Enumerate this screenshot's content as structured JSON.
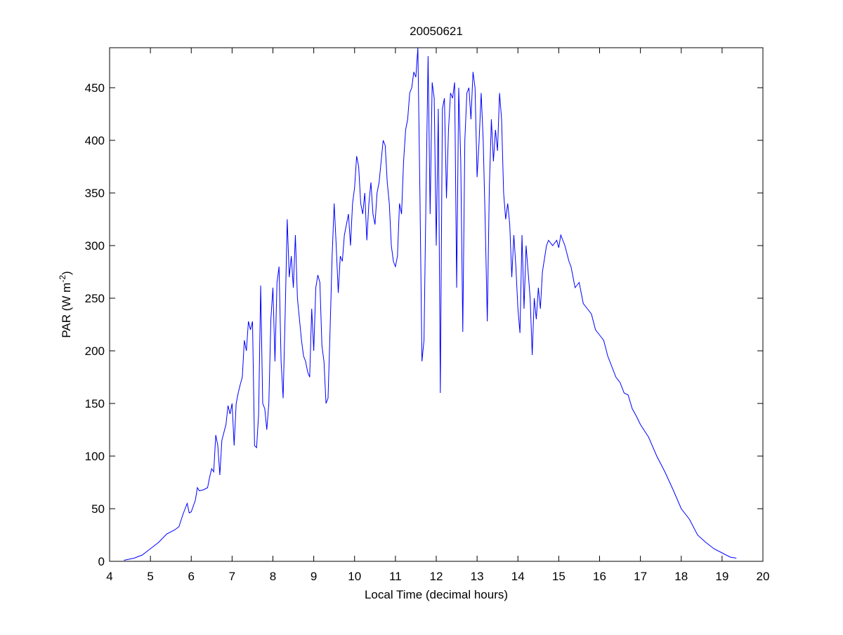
{
  "chart_data": {
    "type": "line",
    "title": "20050621",
    "xlabel": "Local Time (decimal hours)",
    "ylabel": [
      "PAR (W m",
      "-2",
      ")"
    ],
    "xlim": [
      4,
      20
    ],
    "xticks": [
      4,
      5,
      6,
      7,
      8,
      9,
      10,
      11,
      12,
      13,
      14,
      15,
      16,
      17,
      18,
      19,
      20
    ],
    "ylim": [
      0,
      488
    ],
    "yticks": [
      0,
      50,
      100,
      150,
      200,
      250,
      300,
      350,
      400,
      450
    ],
    "series": [
      {
        "color": "#0000ff",
        "x": [
          4.35,
          4.6,
          4.8,
          5.0,
          5.2,
          5.4,
          5.6,
          5.7,
          5.8,
          5.9,
          5.95,
          6.0,
          6.1,
          6.15,
          6.2,
          6.3,
          6.4,
          6.45,
          6.5,
          6.55,
          6.6,
          6.65,
          6.7,
          6.75,
          6.85,
          6.9,
          6.95,
          7.0,
          7.05,
          7.1,
          7.15,
          7.2,
          7.25,
          7.3,
          7.35,
          7.4,
          7.45,
          7.5,
          7.55,
          7.6,
          7.65,
          7.7,
          7.75,
          7.8,
          7.85,
          7.9,
          7.95,
          8.0,
          8.05,
          8.1,
          8.15,
          8.2,
          8.25,
          8.3,
          8.35,
          8.4,
          8.45,
          8.5,
          8.55,
          8.6,
          8.7,
          8.75,
          8.8,
          8.85,
          8.9,
          8.95,
          9.0,
          9.05,
          9.1,
          9.15,
          9.2,
          9.25,
          9.3,
          9.35,
          9.4,
          9.45,
          9.5,
          9.55,
          9.6,
          9.65,
          9.7,
          9.75,
          9.8,
          9.85,
          9.9,
          9.95,
          10.0,
          10.05,
          10.1,
          10.15,
          10.2,
          10.25,
          10.3,
          10.35,
          10.4,
          10.45,
          10.5,
          10.55,
          10.6,
          10.65,
          10.7,
          10.75,
          10.8,
          10.85,
          10.9,
          10.95,
          11.0,
          11.05,
          11.1,
          11.15,
          11.2,
          11.25,
          11.3,
          11.35,
          11.4,
          11.45,
          11.5,
          11.55,
          11.6,
          11.65,
          11.7,
          11.75,
          11.8,
          11.85,
          11.9,
          11.95,
          12.0,
          12.05,
          12.1,
          12.15,
          12.2,
          12.25,
          12.3,
          12.35,
          12.4,
          12.45,
          12.5,
          12.55,
          12.6,
          12.65,
          12.7,
          12.75,
          12.8,
          12.85,
          12.9,
          12.95,
          13.0,
          13.05,
          13.1,
          13.15,
          13.2,
          13.25,
          13.3,
          13.35,
          13.4,
          13.45,
          13.5,
          13.55,
          13.6,
          13.65,
          13.7,
          13.75,
          13.8,
          13.85,
          13.9,
          13.95,
          14.0,
          14.05,
          14.1,
          14.15,
          14.2,
          14.3,
          14.35,
          14.4,
          14.45,
          14.5,
          14.55,
          14.6,
          14.7,
          14.75,
          14.85,
          14.95,
          15.0,
          15.05,
          15.15,
          15.25,
          15.3,
          15.4,
          15.5,
          15.6,
          15.7,
          15.8,
          15.9,
          16.0,
          16.1,
          16.2,
          16.3,
          16.4,
          16.5,
          16.6,
          16.7,
          16.8,
          16.9,
          17.0,
          17.2,
          17.4,
          17.6,
          17.8,
          18.0,
          18.2,
          18.4,
          18.6,
          18.8,
          19.0,
          19.2,
          19.35
        ],
        "values": [
          1,
          3,
          6,
          12,
          18,
          26,
          30,
          33,
          45,
          55,
          46,
          47,
          58,
          70,
          67,
          68,
          70,
          80,
          88,
          85,
          120,
          110,
          82,
          115,
          130,
          148,
          140,
          150,
          110,
          150,
          160,
          168,
          175,
          210,
          200,
          228,
          220,
          228,
          110,
          108,
          140,
          262,
          150,
          145,
          125,
          150,
          230,
          260,
          190,
          265,
          280,
          190,
          155,
          235,
          325,
          270,
          290,
          260,
          310,
          250,
          210,
          195,
          190,
          180,
          175,
          240,
          200,
          260,
          272,
          265,
          205,
          190,
          150,
          155,
          220,
          290,
          340,
          300,
          255,
          290,
          285,
          310,
          320,
          330,
          300,
          340,
          355,
          385,
          375,
          340,
          330,
          350,
          305,
          340,
          360,
          330,
          320,
          350,
          360,
          380,
          400,
          395,
          360,
          340,
          300,
          285,
          280,
          290,
          340,
          330,
          380,
          410,
          420,
          445,
          450,
          465,
          460,
          488,
          350,
          190,
          210,
          350,
          480,
          330,
          455,
          440,
          300,
          430,
          160,
          430,
          440,
          345,
          410,
          445,
          440,
          455,
          260,
          450,
          380,
          218,
          400,
          445,
          450,
          420,
          465,
          450,
          365,
          400,
          445,
          400,
          320,
          228,
          355,
          420,
          380,
          410,
          390,
          445,
          420,
          350,
          325,
          340,
          320,
          270,
          310,
          280,
          240,
          217,
          310,
          240,
          300,
          250,
          196,
          250,
          230,
          260,
          240,
          275,
          300,
          305,
          300,
          305,
          298,
          310,
          300,
          285,
          280,
          260,
          265,
          245,
          240,
          235,
          220,
          215,
          210,
          195,
          185,
          175,
          170,
          160,
          158,
          145,
          138,
          130,
          118,
          100,
          85,
          68,
          50,
          40,
          25,
          18,
          12,
          8,
          4,
          3
        ]
      }
    ]
  }
}
